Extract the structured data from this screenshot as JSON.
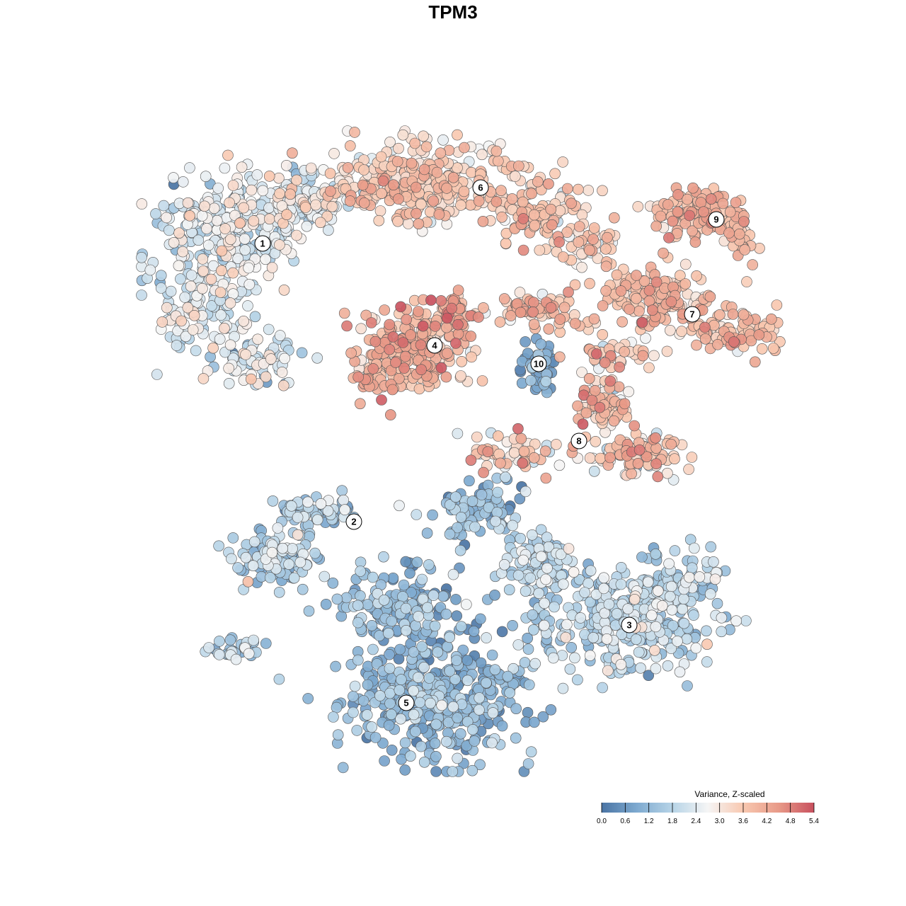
{
  "title": "TPM3",
  "colors": {
    "scale": [
      "#4a74a4",
      "#7eaad0",
      "#b7d4e7",
      "#f5f5f5",
      "#f8c8b0",
      "#e89a88",
      "#c8505e"
    ],
    "point_stroke": "#555555",
    "label_fill": "#ffffff"
  },
  "chart_data": {
    "type": "scatter",
    "title": "TPM3",
    "xlabel": "",
    "ylabel": "",
    "grid": false,
    "legend": {
      "title": "Variance, Z-scaled",
      "placement": "bottom-right",
      "ticks": [
        "0.0",
        "0.6",
        "1.2",
        "1.8",
        "2.4",
        "3.0",
        "3.6",
        "4.2",
        "4.8",
        "5.4"
      ],
      "range": [
        0,
        5.4
      ]
    },
    "clusters": [
      {
        "label": "1",
        "mean_value": 2.3,
        "spread": 0.55
      },
      {
        "label": "2",
        "mean_value": 1.7,
        "spread": 0.6
      },
      {
        "label": "3",
        "mean_value": 1.8,
        "spread": 0.55
      },
      {
        "label": "4",
        "mean_value": 3.9,
        "spread": 0.5
      },
      {
        "label": "5",
        "mean_value": 1.1,
        "spread": 0.55
      },
      {
        "label": "6",
        "mean_value": 3.4,
        "spread": 0.5
      },
      {
        "label": "7",
        "mean_value": 3.8,
        "spread": 0.45
      },
      {
        "label": "8",
        "mean_value": 3.5,
        "spread": 0.8
      },
      {
        "label": "9",
        "mean_value": 3.9,
        "spread": 0.45
      },
      {
        "label": "10",
        "mean_value": 0.8,
        "spread": 0.35
      }
    ]
  }
}
